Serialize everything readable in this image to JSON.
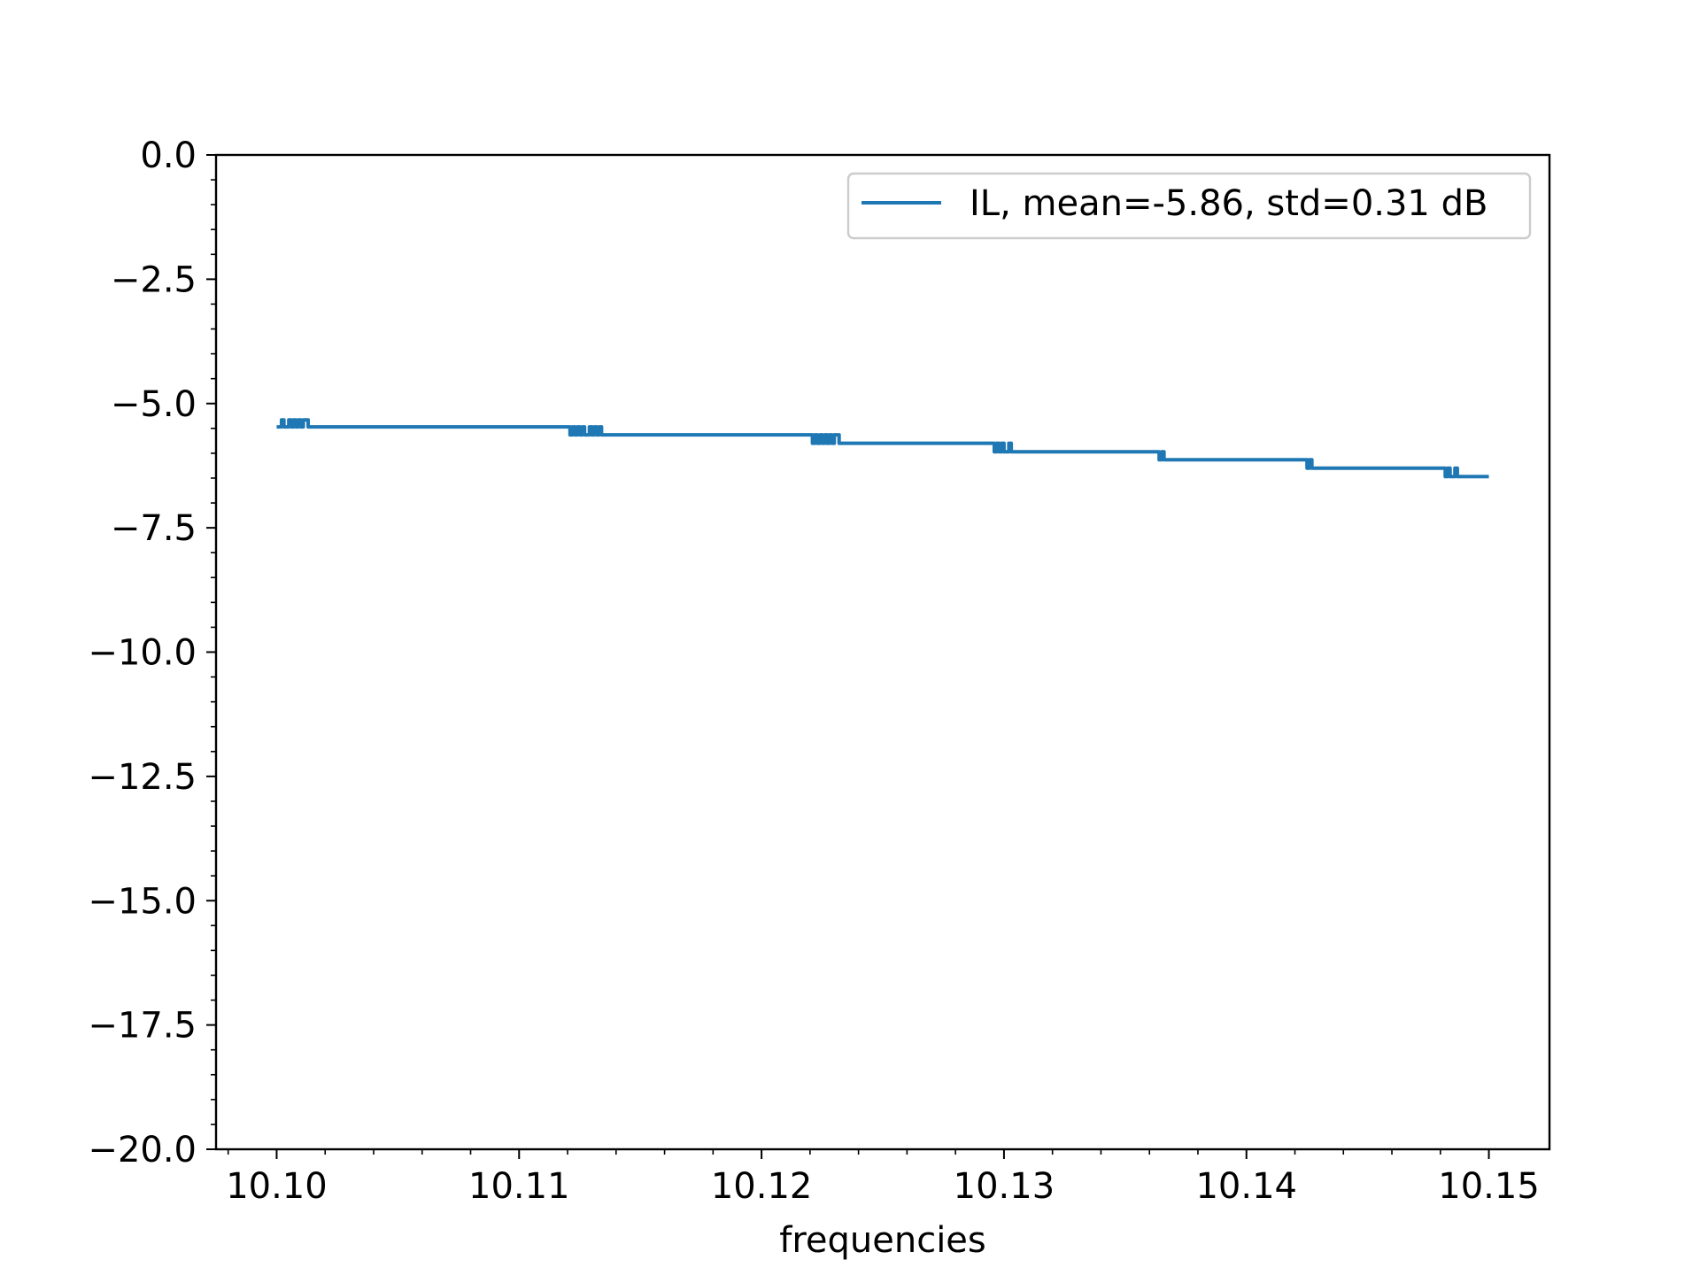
{
  "chart_data": {
    "type": "line",
    "xlabel": "frequencies",
    "ylabel": "",
    "title": "",
    "xlim": [
      10.0975,
      10.1525
    ],
    "ylim": [
      -20.0,
      0.0
    ],
    "x_ticks": [
      10.1,
      10.11,
      10.12,
      10.13,
      10.14,
      10.15
    ],
    "x_tick_labels": [
      "10.10",
      "10.11",
      "10.12",
      "10.13",
      "10.14",
      "10.15"
    ],
    "y_ticks": [
      0.0,
      -2.5,
      -5.0,
      -7.5,
      -10.0,
      -12.5,
      -15.0,
      -17.5,
      -20.0
    ],
    "y_tick_labels": [
      "0.0",
      "−2.5",
      "−5.0",
      "−7.5",
      "−10.0",
      "−12.5",
      "−15.0",
      "−17.5",
      "−20.0"
    ],
    "grid": false,
    "legend_position": "top-right",
    "series": [
      {
        "name": "IL, mean=-5.86, std=0.31 dB",
        "color": "#1f77b4",
        "x": [
          10.1,
          10.1001,
          10.1002,
          10.1003,
          10.1004,
          10.1005,
          10.1006,
          10.1007,
          10.1008,
          10.1009,
          10.101,
          10.1011,
          10.1013,
          10.112,
          10.1121,
          10.1122,
          10.1123,
          10.1124,
          10.1125,
          10.1126,
          10.1127,
          10.1128,
          10.1129,
          10.113,
          10.1131,
          10.1132,
          10.1133,
          10.1134,
          10.122,
          10.1221,
          10.1222,
          10.1223,
          10.1224,
          10.1225,
          10.1226,
          10.1227,
          10.1228,
          10.1229,
          10.123,
          10.1232,
          10.1295,
          10.1296,
          10.1297,
          10.1298,
          10.1299,
          10.13,
          10.1301,
          10.1302,
          10.1303,
          10.1363,
          10.1364,
          10.1365,
          10.1366,
          10.1424,
          10.1425,
          10.1426,
          10.1427,
          10.1481,
          10.1482,
          10.1483,
          10.1484,
          10.1485,
          10.1486,
          10.1487,
          10.15
        ],
        "y": [
          -5.47,
          -5.47,
          -5.33,
          -5.47,
          -5.47,
          -5.33,
          -5.47,
          -5.33,
          -5.47,
          -5.33,
          -5.47,
          -5.33,
          -5.47,
          -5.47,
          -5.63,
          -5.47,
          -5.63,
          -5.47,
          -5.63,
          -5.47,
          -5.63,
          -5.63,
          -5.47,
          -5.63,
          -5.47,
          -5.63,
          -5.47,
          -5.63,
          -5.63,
          -5.8,
          -5.63,
          -5.8,
          -5.63,
          -5.8,
          -5.63,
          -5.8,
          -5.63,
          -5.8,
          -5.63,
          -5.8,
          -5.8,
          -5.97,
          -5.8,
          -5.97,
          -5.8,
          -5.97,
          -5.97,
          -5.8,
          -5.97,
          -5.97,
          -6.13,
          -5.97,
          -6.13,
          -6.13,
          -6.3,
          -6.13,
          -6.3,
          -6.3,
          -6.47,
          -6.3,
          -6.47,
          -6.47,
          -6.3,
          -6.47,
          -6.47
        ]
      }
    ]
  }
}
